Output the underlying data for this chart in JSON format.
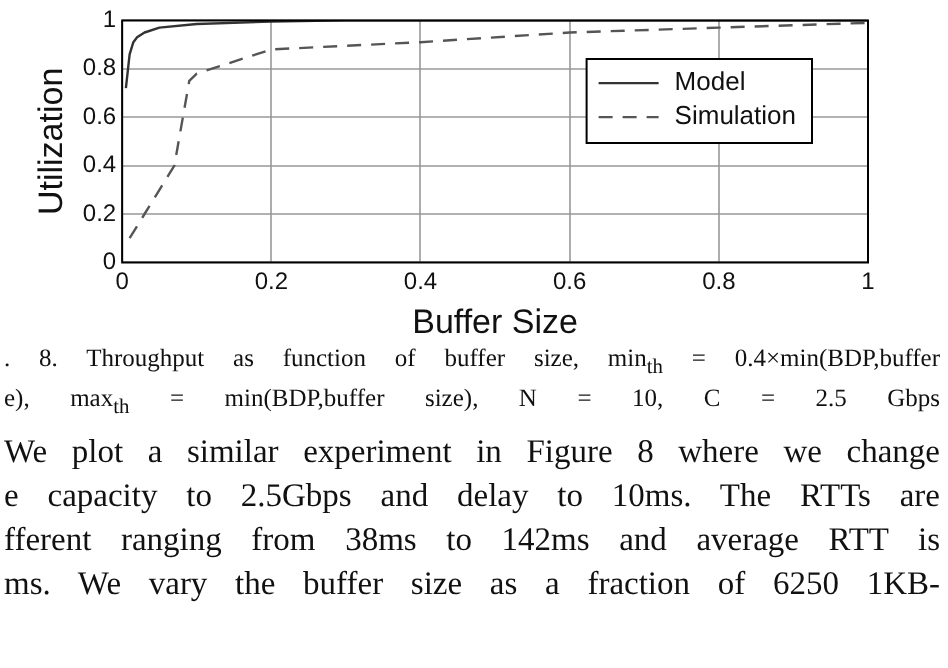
{
  "chart_data": {
    "type": "line",
    "xlabel": "Buffer Size",
    "ylabel": "Utilization",
    "xlim": [
      0,
      1
    ],
    "xticks": [
      0,
      0.2,
      0.4,
      0.6,
      0.8,
      1
    ],
    "ylim": [
      0,
      1
    ],
    "yticks": [
      0,
      0.2,
      0.4,
      0.6,
      0.8,
      1
    ],
    "grid": true,
    "legend": "right",
    "marker": "none",
    "series": [
      {
        "name": "Model",
        "color": "#333333",
        "line_style": "solid",
        "x": [
          0.005,
          0.01,
          0.015,
          0.02,
          0.03,
          0.05,
          0.1,
          0.2,
          0.3,
          0.5,
          1
        ],
        "values": [
          0.72,
          0.86,
          0.91,
          0.93,
          0.95,
          0.97,
          0.985,
          0.995,
          1,
          1,
          1
        ]
      },
      {
        "name": "Simulation",
        "color": "#555555",
        "line_style": "dashed",
        "x": [
          0.01,
          0.03,
          0.05,
          0.07,
          0.09,
          0.1,
          0.2,
          0.4,
          0.6,
          0.8,
          1
        ],
        "values": [
          0.1,
          0.2,
          0.3,
          0.4,
          0.75,
          0.78,
          0.88,
          0.91,
          0.95,
          0.97,
          0.99
        ]
      }
    ],
    "annotations": [
      ". 8.  Throughput as function of buffer size, min$_{th}$ = 0.4×min(BDP,buffer",
      "e), max$_{th}$ = min(BDP,buffer size), N = 10, C = 2.5 Gbps",
      "We plot a similar experiment in Figure 8 where we change",
      "e capacity to 2.5Gbps and delay to 10ms. The RTTs are",
      "fferent ranging from 38ms to 142ms and average RTT is",
      "ms. We vary the buffer size as a fraction of 6250 1KB-"
    ]
  }
}
